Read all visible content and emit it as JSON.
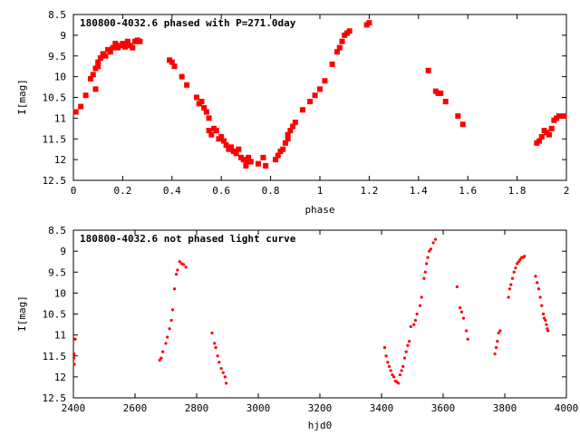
{
  "chart_data": [
    {
      "type": "scatter",
      "title": "180800-4032.6 phased with P=271.0day",
      "xlabel": "phase",
      "ylabel": "I[mag]",
      "xlim": [
        0,
        2
      ],
      "ylim": [
        12.5,
        8.5
      ],
      "y_inverted": true,
      "grid": false,
      "marker_color": "#ff0000",
      "x_ticks": [
        "0",
        "0.2",
        "0.4",
        "0.6",
        "0.8",
        "1",
        "1.2",
        "1.4",
        "1.6",
        "1.8",
        "2"
      ],
      "y_ticks": [
        "8.5",
        "9",
        "9.5",
        "10",
        "10.5",
        "11",
        "11.5",
        "12",
        "12.5"
      ],
      "series": [
        {
          "points": [
            [
              0.01,
              10.85
            ],
            [
              0.03,
              10.72
            ],
            [
              0.05,
              10.45
            ],
            [
              0.07,
              10.05
            ],
            [
              0.08,
              9.95
            ],
            [
              0.09,
              9.8
            ],
            [
              0.09,
              10.3
            ],
            [
              0.1,
              9.75
            ],
            [
              0.1,
              9.65
            ],
            [
              0.11,
              9.55
            ],
            [
              0.12,
              9.45
            ],
            [
              0.13,
              9.5
            ],
            [
              0.14,
              9.35
            ],
            [
              0.15,
              9.4
            ],
            [
              0.16,
              9.3
            ],
            [
              0.17,
              9.2
            ],
            [
              0.18,
              9.3
            ],
            [
              0.19,
              9.25
            ],
            [
              0.2,
              9.2
            ],
            [
              0.21,
              9.28
            ],
            [
              0.22,
              9.15
            ],
            [
              0.23,
              9.25
            ],
            [
              0.24,
              9.3
            ],
            [
              0.25,
              9.15
            ],
            [
              0.26,
              9.12
            ],
            [
              0.27,
              9.15
            ],
            [
              0.39,
              9.6
            ],
            [
              0.4,
              9.65
            ],
            [
              0.41,
              9.75
            ],
            [
              0.44,
              10.0
            ],
            [
              0.46,
              10.2
            ],
            [
              0.5,
              10.5
            ],
            [
              0.51,
              10.65
            ],
            [
              0.52,
              10.6
            ],
            [
              0.53,
              10.75
            ],
            [
              0.54,
              10.85
            ],
            [
              0.55,
              11.0
            ],
            [
              0.55,
              11.3
            ],
            [
              0.56,
              11.4
            ],
            [
              0.57,
              11.25
            ],
            [
              0.58,
              11.3
            ],
            [
              0.59,
              11.5
            ],
            [
              0.6,
              11.45
            ],
            [
              0.61,
              11.55
            ],
            [
              0.62,
              11.65
            ],
            [
              0.63,
              11.75
            ],
            [
              0.64,
              11.7
            ],
            [
              0.65,
              11.8
            ],
            [
              0.66,
              11.85
            ],
            [
              0.67,
              11.75
            ],
            [
              0.68,
              11.95
            ],
            [
              0.69,
              12.0
            ],
            [
              0.7,
              12.05
            ],
            [
              0.7,
              12.15
            ],
            [
              0.71,
              11.95
            ],
            [
              0.72,
              12.05
            ],
            [
              0.75,
              12.1
            ],
            [
              0.77,
              11.95
            ],
            [
              0.78,
              12.15
            ],
            [
              0.82,
              12.0
            ],
            [
              0.83,
              11.9
            ],
            [
              0.84,
              11.8
            ],
            [
              0.85,
              11.75
            ],
            [
              0.86,
              11.6
            ],
            [
              0.87,
              11.5
            ],
            [
              0.87,
              11.4
            ],
            [
              0.88,
              11.3
            ],
            [
              0.89,
              11.2
            ],
            [
              0.9,
              11.1
            ],
            [
              0.93,
              10.8
            ],
            [
              0.96,
              10.6
            ],
            [
              0.98,
              10.45
            ],
            [
              1.0,
              10.3
            ],
            [
              1.02,
              10.1
            ],
            [
              1.05,
              9.7
            ],
            [
              1.07,
              9.4
            ],
            [
              1.08,
              9.3
            ],
            [
              1.09,
              9.15
            ],
            [
              1.1,
              9.0
            ],
            [
              1.11,
              8.95
            ],
            [
              1.12,
              8.9
            ],
            [
              1.19,
              8.75
            ],
            [
              1.2,
              8.7
            ],
            [
              1.44,
              9.85
            ],
            [
              1.47,
              10.35
            ],
            [
              1.48,
              10.4
            ],
            [
              1.49,
              10.4
            ],
            [
              1.51,
              10.6
            ],
            [
              1.56,
              10.95
            ],
            [
              1.58,
              11.15
            ],
            [
              1.88,
              11.6
            ],
            [
              1.89,
              11.55
            ],
            [
              1.9,
              11.45
            ],
            [
              1.91,
              11.3
            ],
            [
              1.92,
              11.35
            ],
            [
              1.93,
              11.4
            ],
            [
              1.94,
              11.25
            ],
            [
              1.95,
              11.05
            ],
            [
              1.96,
              11.0
            ],
            [
              1.97,
              10.95
            ],
            [
              1.99,
              10.95
            ]
          ]
        }
      ]
    },
    {
      "type": "scatter",
      "title": "180800-4032.6 not phased light curve",
      "xlabel": "hjd0",
      "ylabel": "I[mag]",
      "xlim": [
        2400,
        4000
      ],
      "ylim": [
        12.5,
        8.5
      ],
      "y_inverted": true,
      "grid": false,
      "marker_color": "#ff0000",
      "x_ticks": [
        "2400",
        "2600",
        "2800",
        "3000",
        "3200",
        "3400",
        "3600",
        "3800",
        "4000"
      ],
      "y_ticks": [
        "8.5",
        "9",
        "9.5",
        "10",
        "10.5",
        "11",
        "11.5",
        "12",
        "12.5"
      ],
      "series": [
        {
          "points": [
            [
              2402,
              11.45
            ],
            [
              2402,
              11.55
            ],
            [
              2403,
              11.7
            ],
            [
              2406,
              11.1
            ],
            [
              2680,
              11.6
            ],
            [
              2685,
              11.55
            ],
            [
              2690,
              11.4
            ],
            [
              2700,
              11.2
            ],
            [
              2705,
              11.05
            ],
            [
              2712,
              10.85
            ],
            [
              2718,
              10.65
            ],
            [
              2722,
              10.4
            ],
            [
              2728,
              9.9
            ],
            [
              2734,
              9.55
            ],
            [
              2738,
              9.45
            ],
            [
              2745,
              9.25
            ],
            [
              2752,
              9.3
            ],
            [
              2758,
              9.32
            ],
            [
              2765,
              9.38
            ],
            [
              2850,
              10.95
            ],
            [
              2858,
              11.2
            ],
            [
              2862,
              11.3
            ],
            [
              2868,
              11.5
            ],
            [
              2873,
              11.65
            ],
            [
              2880,
              11.8
            ],
            [
              2886,
              11.9
            ],
            [
              2892,
              12.0
            ],
            [
              2896,
              12.15
            ],
            [
              3410,
              11.3
            ],
            [
              3415,
              11.5
            ],
            [
              3420,
              11.65
            ],
            [
              3425,
              11.75
            ],
            [
              3430,
              11.85
            ],
            [
              3435,
              11.95
            ],
            [
              3440,
              12.0
            ],
            [
              3445,
              12.1
            ],
            [
              3450,
              12.12
            ],
            [
              3455,
              12.15
            ],
            [
              3460,
              11.95
            ],
            [
              3465,
              11.85
            ],
            [
              3470,
              11.75
            ],
            [
              3475,
              11.55
            ],
            [
              3480,
              11.4
            ],
            [
              3485,
              11.25
            ],
            [
              3490,
              11.15
            ],
            [
              3495,
              10.8
            ],
            [
              3505,
              10.75
            ],
            [
              3510,
              10.65
            ],
            [
              3515,
              10.5
            ],
            [
              3525,
              10.3
            ],
            [
              3530,
              10.1
            ],
            [
              3538,
              9.65
            ],
            [
              3542,
              9.5
            ],
            [
              3546,
              9.3
            ],
            [
              3550,
              9.15
            ],
            [
              3555,
              9.0
            ],
            [
              3560,
              8.95
            ],
            [
              3568,
              8.8
            ],
            [
              3575,
              8.72
            ],
            [
              3645,
              9.85
            ],
            [
              3655,
              10.35
            ],
            [
              3660,
              10.45
            ],
            [
              3666,
              10.6
            ],
            [
              3675,
              10.9
            ],
            [
              3680,
              11.1
            ],
            [
              3768,
              11.45
            ],
            [
              3772,
              11.3
            ],
            [
              3776,
              11.15
            ],
            [
              3780,
              10.95
            ],
            [
              3785,
              10.9
            ],
            [
              3812,
              10.1
            ],
            [
              3816,
              9.9
            ],
            [
              3820,
              9.8
            ],
            [
              3825,
              9.65
            ],
            [
              3830,
              9.5
            ],
            [
              3835,
              9.4
            ],
            [
              3840,
              9.3
            ],
            [
              3845,
              9.25
            ],
            [
              3850,
              9.2
            ],
            [
              3855,
              9.15
            ],
            [
              3860,
              9.15
            ],
            [
              3864,
              9.12
            ],
            [
              3900,
              9.6
            ],
            [
              3905,
              9.75
            ],
            [
              3910,
              9.9
            ],
            [
              3915,
              10.1
            ],
            [
              3920,
              10.3
            ],
            [
              3925,
              10.5
            ],
            [
              3928,
              10.6
            ],
            [
              3932,
              10.65
            ],
            [
              3935,
              10.75
            ],
            [
              3938,
              10.85
            ],
            [
              3940,
              10.9
            ]
          ]
        }
      ]
    }
  ]
}
